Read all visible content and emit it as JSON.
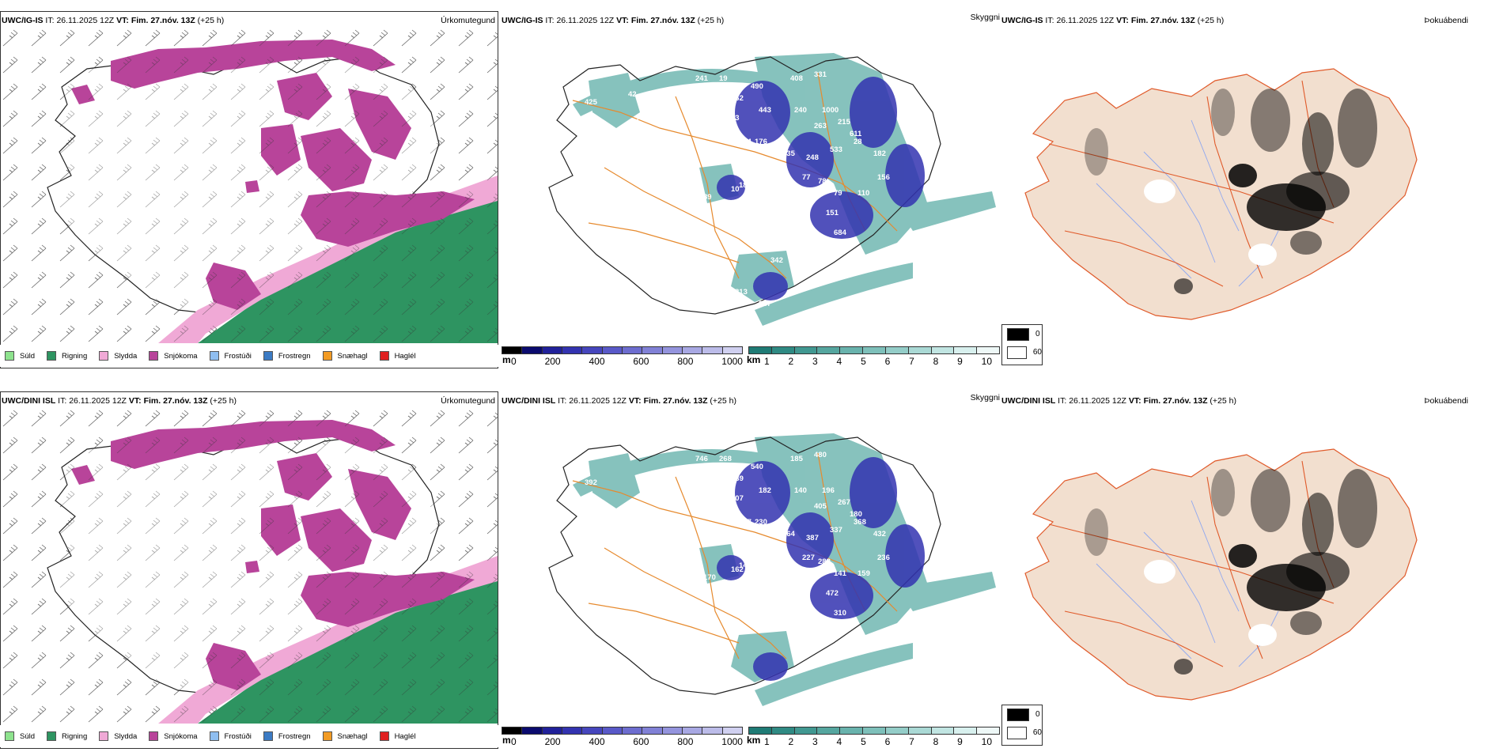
{
  "rows": [
    {
      "model": "UWC/IG-IS",
      "it_label": "IT:",
      "it_value": "26.11.2025 12Z",
      "vt_label": "VT:",
      "vt_value": "Fim. 27.nóv. 13Z",
      "lead": "(+25 h)",
      "precip_title": "Úrkomutegund",
      "vis_title": "Skyggni",
      "fog_title": "Þokuábendi",
      "vis_numbers": [
        "425",
        "241",
        "19",
        "262",
        "490",
        "408",
        "331",
        "119",
        "103",
        "83",
        "144",
        "176",
        "443",
        "240",
        "1000",
        "263",
        "215",
        "13",
        "190",
        "308",
        "611",
        "74",
        "235",
        "248",
        "533",
        "28",
        "182",
        "156",
        "180",
        "120",
        "77",
        "78",
        "79",
        "110",
        "146",
        "89",
        "10",
        "127",
        "155",
        "355",
        "151",
        "46",
        "363",
        "218",
        "684",
        "342",
        "813",
        "247",
        "42",
        "75"
      ]
    },
    {
      "model": "UWC/DINI ISL",
      "it_label": "IT:",
      "it_value": "26.11.2025 12Z",
      "vt_label": "VT:",
      "vt_value": "Fim. 27.nóv. 13Z",
      "lead": "(+25 h)",
      "precip_title": "Úrkomutegund",
      "vis_title": "Skyggni",
      "fog_title": "Þokuábendi",
      "vis_numbers": [
        "392",
        "746",
        "268",
        "389",
        "540",
        "185",
        "480",
        "132",
        "207",
        "268",
        "277",
        "230",
        "182",
        "140",
        "196",
        "405",
        "267",
        "207",
        "244",
        "211",
        "180",
        "168",
        "864",
        "387",
        "337",
        "368",
        "432",
        "236",
        "144",
        "294",
        "227",
        "288",
        "141",
        "159",
        "84",
        "170",
        "162",
        "103",
        "11",
        "248",
        "472",
        "215",
        "339",
        "405",
        "310"
      ]
    }
  ],
  "precip_legend": [
    {
      "label": "Súld",
      "color": "#8ee38e"
    },
    {
      "label": "Rigning",
      "color": "#2e9461"
    },
    {
      "label": "Slydda",
      "color": "#f0a9d6"
    },
    {
      "label": "Snjókoma",
      "color": "#b8449a"
    },
    {
      "label": "Frostúði",
      "color": "#8fbef0"
    },
    {
      "label": "Frostregn",
      "color": "#3c7bc4"
    },
    {
      "label": "Snæhagl",
      "color": "#f29b24"
    },
    {
      "label": "Haglél",
      "color": "#e02020"
    }
  ],
  "ceiling_scale": {
    "unit": "m",
    "ticks": [
      "0",
      "200",
      "400",
      "600",
      "800",
      "1000"
    ],
    "colors": [
      "#000000",
      "#0b0b6e",
      "#21219a",
      "#3333b0",
      "#4646bd",
      "#5959c8",
      "#6d6dcf",
      "#8181d6",
      "#9494dd",
      "#a8a8e3",
      "#bcbce9",
      "#d0d0f0"
    ]
  },
  "visibility_scale": {
    "unit": "km",
    "ticks": [
      "1",
      "2",
      "3",
      "4",
      "5",
      "6",
      "7",
      "8",
      "9",
      "10"
    ],
    "colors": [
      "#1f7b75",
      "#2f8a83",
      "#419891",
      "#55a69f",
      "#69b3ad",
      "#7ec0ba",
      "#94cdc8",
      "#aad9d5",
      "#c1e5e2",
      "#d8f0ee",
      "#eef8f7"
    ]
  },
  "fog_legend": [
    {
      "label": "0",
      "color": "#000000"
    },
    {
      "label": "60",
      "color": "#ffffff"
    }
  ]
}
